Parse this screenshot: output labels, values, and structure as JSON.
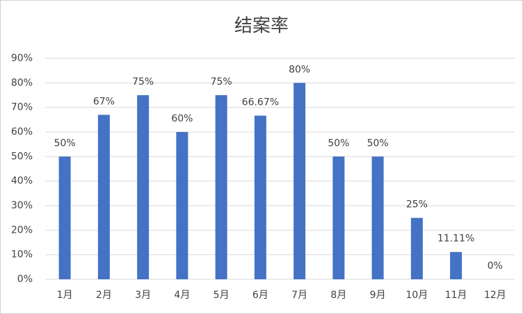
{
  "chart_data": {
    "type": "bar",
    "title": "结案率",
    "categories": [
      "1月",
      "2月",
      "3月",
      "4月",
      "5月",
      "6月",
      "7月",
      "8月",
      "9月",
      "10月",
      "11月",
      "12月"
    ],
    "values": [
      50,
      67,
      75,
      60,
      75,
      66.67,
      80,
      50,
      50,
      25,
      11.11,
      0
    ],
    "value_labels": [
      "50%",
      "67%",
      "75%",
      "60%",
      "75%",
      "66.67%",
      "80%",
      "50%",
      "50%",
      "25%",
      "11.11%",
      "0%"
    ],
    "color": "#4472c4",
    "ylim": [
      0,
      90
    ],
    "yticks": [
      {
        "value": 0,
        "label": "0%"
      },
      {
        "value": 10,
        "label": "10%"
      },
      {
        "value": 20,
        "label": "20%"
      },
      {
        "value": 30,
        "label": "30%"
      },
      {
        "value": 40,
        "label": "40%"
      },
      {
        "value": 50,
        "label": "50%"
      },
      {
        "value": 60,
        "label": "60%"
      },
      {
        "value": 70,
        "label": "70%"
      },
      {
        "value": 80,
        "label": "80%"
      },
      {
        "value": 90,
        "label": "90%"
      }
    ],
    "grid": true
  }
}
